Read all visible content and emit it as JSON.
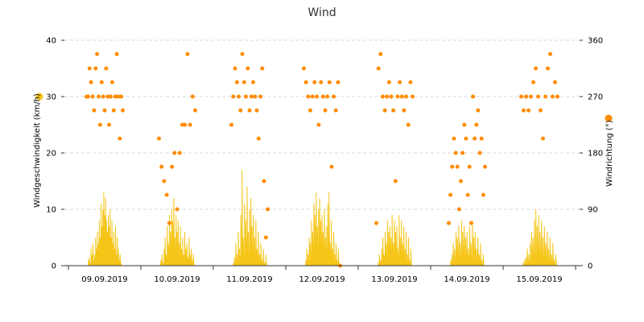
{
  "chart_data": {
    "type": "line",
    "title": "Wind",
    "ylabel": "Windgeschwindigkeit (km/h)",
    "y2label": "Windrichtung (°)",
    "ylim": [
      0,
      40
    ],
    "y2lim": [
      0,
      360
    ],
    "yticks": [
      0,
      10,
      20,
      30,
      40
    ],
    "y2ticks": [
      0,
      90,
      180,
      270,
      360
    ],
    "grid": true,
    "colors": {
      "speed": "#F5C518",
      "direction": "#FF8C00",
      "legend_speed": "#F5C518",
      "legend_direction": "#FF8C00"
    },
    "categories": [
      "09.09.2019",
      "10.09.2019",
      "11.09.2019",
      "12.09.2019",
      "13.09.2019",
      "14.09.2019",
      "15.09.2019"
    ],
    "speed_daily": [
      [
        1,
        1.5,
        0.5,
        3,
        2,
        4,
        1,
        2,
        5,
        3,
        6,
        4,
        8,
        5,
        11,
        7,
        10,
        13,
        9,
        12,
        8,
        6,
        9,
        7,
        10,
        5,
        8,
        4,
        6,
        3,
        7,
        2,
        5,
        3,
        1,
        2,
        0.5
      ],
      [
        1,
        2,
        0.5,
        3,
        5,
        2,
        7,
        4,
        9,
        6,
        10,
        8,
        12,
        5,
        9,
        6,
        8,
        4,
        7,
        3,
        5,
        2,
        6,
        3,
        4,
        1.5,
        5,
        2,
        3,
        1,
        2
      ],
      [
        0.5,
        1.5,
        4,
        2,
        6,
        3,
        9,
        17,
        5,
        11,
        8,
        14,
        6,
        10,
        12,
        7,
        9,
        5,
        8,
        3,
        6,
        2,
        4,
        1,
        3,
        0.5,
        2
      ],
      [
        1,
        3,
        2,
        5,
        4,
        8,
        6,
        11,
        9,
        13,
        7,
        10,
        12,
        8,
        9,
        6,
        10,
        5,
        7,
        11,
        13,
        4,
        8,
        3,
        6,
        2,
        4,
        1,
        3
      ],
      [
        0.5,
        2,
        1,
        3,
        5,
        2,
        6,
        4,
        8,
        6,
        7,
        5,
        9,
        4,
        8,
        6,
        7,
        3,
        9,
        5,
        8,
        4,
        7,
        3,
        6,
        2,
        5,
        1,
        3
      ],
      [
        1,
        2,
        4,
        3,
        6,
        5,
        7,
        4,
        8,
        6,
        7,
        5,
        6,
        3,
        7,
        4,
        8,
        5,
        6,
        3,
        5,
        2,
        4,
        1,
        2
      ],
      [
        0.5,
        1,
        1.5,
        3,
        2,
        4,
        6,
        5,
        8,
        10,
        7,
        9,
        6,
        8,
        5,
        7,
        4,
        6,
        3,
        5,
        2,
        4,
        1,
        2
      ]
    ],
    "direction_daily": [
      [
        270,
        270,
        315,
        293,
        270,
        248,
        315,
        338,
        270,
        225,
        293,
        270,
        248,
        315,
        270,
        225,
        270,
        293,
        248,
        270,
        338,
        270,
        203,
        270,
        248
      ],
      [
        203,
        158,
        135,
        113,
        68,
        158,
        180,
        90,
        180,
        225,
        225,
        338,
        225,
        270,
        248
      ],
      [
        225,
        270,
        315,
        293,
        270,
        248,
        338,
        293,
        270,
        315,
        248,
        270,
        293,
        270,
        248,
        203,
        270,
        315,
        135,
        45,
        90
      ],
      [
        315,
        293,
        270,
        248,
        270,
        293,
        270,
        225,
        293,
        270,
        248,
        270,
        293,
        158,
        270,
        248,
        293,
        0
      ],
      [
        68,
        315,
        338,
        270,
        248,
        270,
        293,
        270,
        248,
        135,
        270,
        293,
        270,
        248,
        270,
        225,
        293,
        270
      ],
      [
        68,
        113,
        158,
        203,
        180,
        158,
        90,
        135,
        180,
        225,
        203,
        113,
        158,
        68,
        270,
        203,
        225,
        248,
        180,
        203,
        113,
        158
      ],
      [
        270,
        248,
        270,
        248,
        270,
        293,
        315,
        270,
        248,
        203,
        270,
        315,
        338,
        270,
        293,
        270
      ]
    ]
  }
}
